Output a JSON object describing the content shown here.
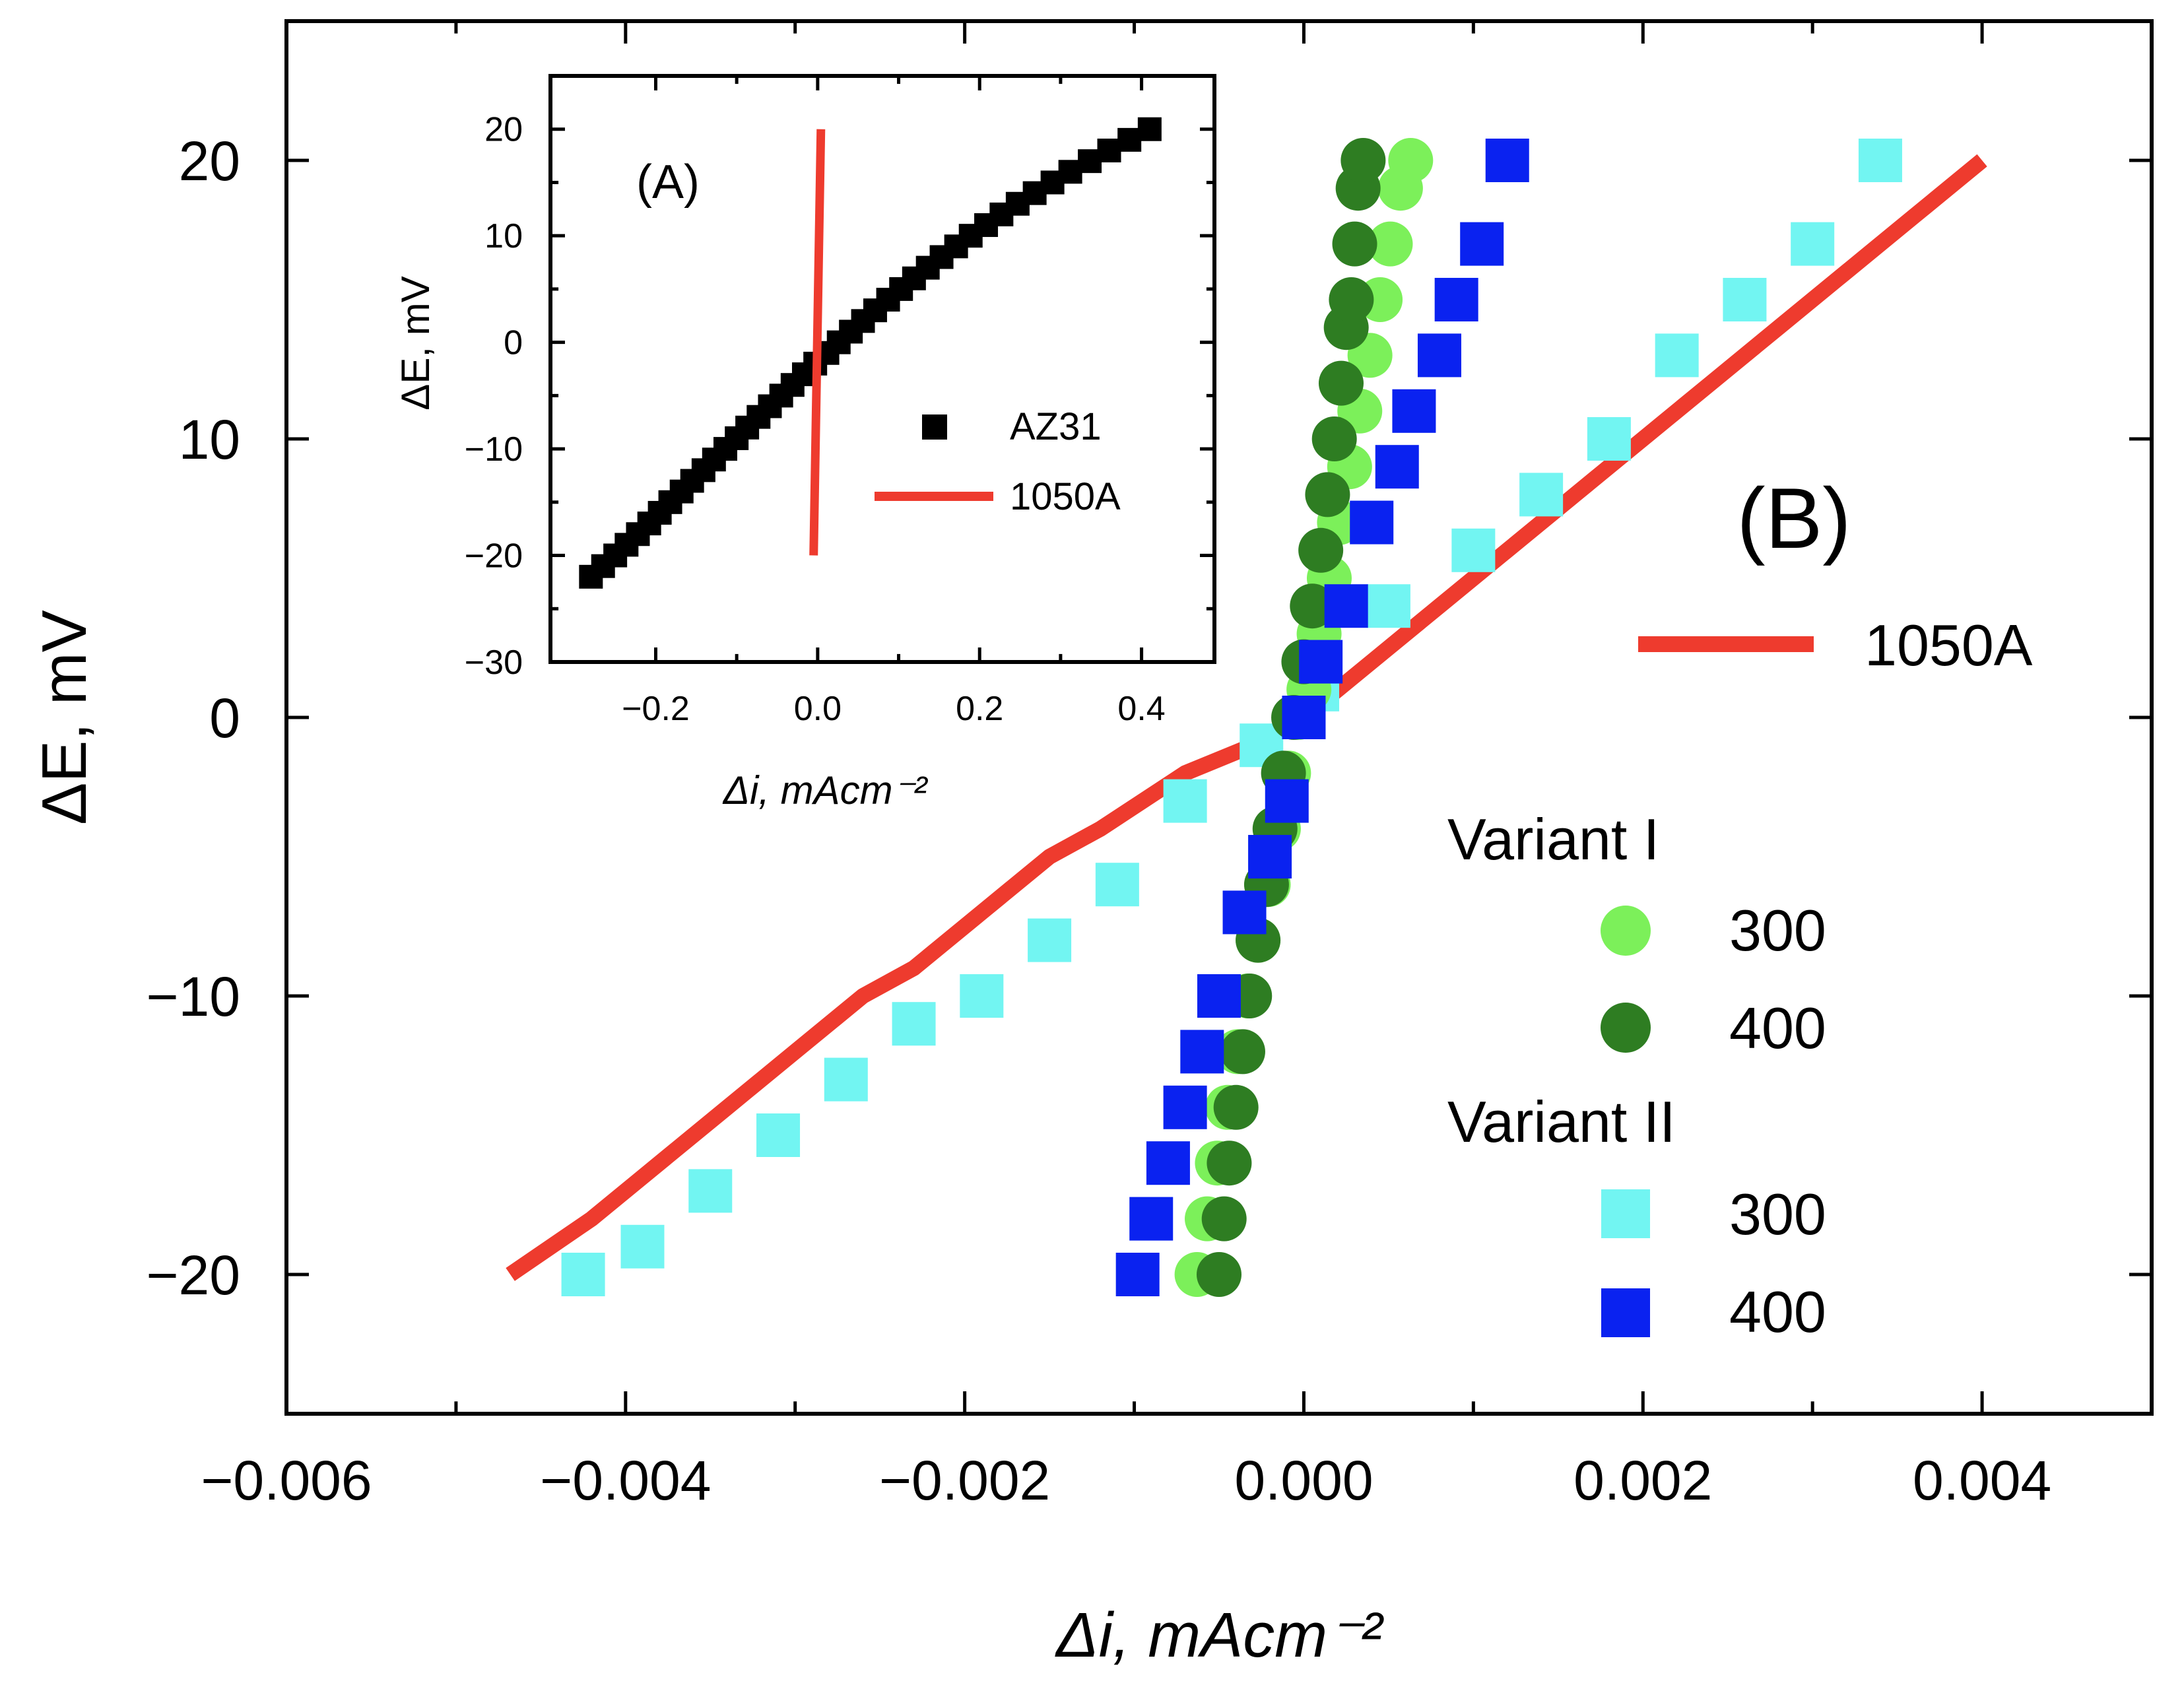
{
  "colors": {
    "line_1050A": "#EE3B2E",
    "v1_300": "#7CF05A",
    "v1_400": "#2E7D22",
    "v2_300": "#72F5F2",
    "v2_400": "#0A22F0",
    "az31": "#000000"
  },
  "chart_data": [
    {
      "id": "main",
      "type": "scatter",
      "panel_label": "(B)",
      "xlabel": "Δi, mAcm⁻²",
      "ylabel": "ΔE, mV",
      "xlim": [
        -0.006,
        0.005
      ],
      "ylim": [
        -25,
        25
      ],
      "x_ticks": [
        -0.006,
        -0.004,
        -0.002,
        0.0,
        0.002,
        0.004
      ],
      "x_tick_labels": [
        "−0.006",
        "−0.004",
        "−0.002",
        "0.000",
        "0.002",
        "0.004"
      ],
      "y_ticks": [
        -20,
        -10,
        0,
        10,
        20
      ],
      "y_tick_labels": [
        "−20",
        "−10",
        "0",
        "10",
        "20"
      ],
      "legend": {
        "line_entry": "1050A",
        "group_1": "Variant I",
        "group_2": "Variant II",
        "entries": [
          {
            "series": "v1_300",
            "label": "300"
          },
          {
            "series": "v1_400",
            "label": "400"
          },
          {
            "series": "v2_300",
            "label": "300"
          },
          {
            "series": "v2_400",
            "label": "400"
          }
        ]
      },
      "series": [
        {
          "id": "a1050",
          "name": "1050A",
          "marker": "line",
          "x": [
            -0.00468,
            -0.0042,
            -0.0038,
            -0.0034,
            -0.003,
            -0.0026,
            -0.0023,
            -0.0019,
            -0.0015,
            -0.0012,
            -0.0007,
            -0.0003,
            0.0,
            0.0004,
            0.0008,
            0.0012,
            0.0016,
            0.002,
            0.0024,
            0.0028,
            0.0032,
            0.0036,
            0.004
          ],
          "y": [
            -20,
            -18,
            -16,
            -14,
            -12,
            -10,
            -9,
            -7,
            -5,
            -4,
            -2,
            -1,
            0,
            2,
            4,
            6,
            8,
            10,
            12,
            14,
            16,
            18,
            20
          ]
        },
        {
          "id": "v1_300",
          "name": "300",
          "marker": "circle",
          "x": [
            -0.00063,
            -0.00057,
            -0.00051,
            -0.00045,
            -0.00039,
            -0.00033,
            -0.00027,
            -0.00021,
            -0.00015,
            -9e-05,
            -3e-05,
            3e-05,
            9e-05,
            0.00015,
            0.00021,
            0.00027,
            0.00033,
            0.00039,
            0.00045,
            0.00051,
            0.00057,
            0.00063
          ],
          "y": [
            -20,
            -18,
            -16,
            -14,
            -12,
            -10,
            -8,
            -6,
            -4,
            -2,
            0,
            1,
            3,
            5,
            7,
            9,
            11,
            13,
            15,
            17,
            19,
            20
          ]
        },
        {
          "id": "v1_400",
          "name": "400",
          "marker": "circle",
          "x": [
            -0.0005,
            -0.00047,
            -0.00044,
            -0.0004,
            -0.00036,
            -0.00032,
            -0.00027,
            -0.00022,
            -0.00017,
            -0.00012,
            -6e-05,
            0.0,
            5e-05,
            0.0001,
            0.00014,
            0.00018,
            0.00022,
            0.00025,
            0.00028,
            0.0003,
            0.00032,
            0.00035
          ],
          "y": [
            -20,
            -18,
            -16,
            -14,
            -12,
            -10,
            -8,
            -6,
            -4,
            -2,
            0,
            2,
            4,
            6,
            8,
            10,
            12,
            14,
            15,
            17,
            19,
            20
          ]
        },
        {
          "id": "v2_300",
          "name": "300",
          "marker": "square",
          "x": [
            -0.00425,
            -0.0039,
            -0.0035,
            -0.0031,
            -0.0027,
            -0.0023,
            -0.0019,
            -0.0015,
            -0.0011,
            -0.0007,
            -0.00025,
            8e-05,
            0.0005,
            0.001,
            0.0014,
            0.0018,
            0.0022,
            0.0026,
            0.003,
            0.0034
          ],
          "y": [
            -20,
            -19,
            -17,
            -15,
            -13,
            -11,
            -10,
            -8,
            -6,
            -3,
            -1,
            1,
            4,
            6,
            8,
            10,
            13,
            15,
            17,
            20
          ]
        },
        {
          "id": "v2_400",
          "name": "400",
          "marker": "square",
          "x": [
            -0.00098,
            -0.0009,
            -0.0008,
            -0.0007,
            -0.0006,
            -0.0005,
            -0.00035,
            -0.0002,
            -0.0001,
            0.0,
            0.0001,
            0.00025,
            0.0004,
            0.00055,
            0.00065,
            0.0008,
            0.0009,
            0.00105,
            0.0012
          ],
          "y": [
            -20,
            -18,
            -16,
            -14,
            -12,
            -10,
            -7,
            -5,
            -3,
            0,
            2,
            4,
            7,
            9,
            11,
            13,
            15,
            17,
            20
          ]
        }
      ]
    },
    {
      "id": "inset",
      "type": "scatter",
      "panel_label": "(A)",
      "xlabel": "Δi, mAcm⁻²",
      "ylabel": "ΔE, mV",
      "xlim": [
        -0.33,
        0.49
      ],
      "ylim": [
        -30,
        25
      ],
      "x_ticks": [
        -0.2,
        0.0,
        0.2,
        0.4
      ],
      "x_tick_labels": [
        "−0.2",
        "0.0",
        "0.2",
        "0.4"
      ],
      "y_ticks": [
        -30,
        -20,
        -10,
        0,
        10,
        20
      ],
      "y_tick_labels": [
        "−30",
        "−20",
        "−10",
        "0",
        "10",
        "20"
      ],
      "legend": {
        "entries": [
          {
            "series": "az31",
            "label": "AZ31"
          },
          {
            "series": "a1050_inset",
            "label": "1050A"
          }
        ]
      },
      "series": [
        {
          "id": "az31",
          "name": "AZ31",
          "marker": "square",
          "x": [
            -0.28,
            -0.265,
            -0.25,
            -0.236,
            -0.222,
            -0.208,
            -0.195,
            -0.182,
            -0.168,
            -0.155,
            -0.141,
            -0.128,
            -0.114,
            -0.1,
            -0.087,
            -0.073,
            -0.059,
            -0.045,
            -0.031,
            -0.017,
            -0.003,
            0.012,
            0.026,
            0.041,
            0.056,
            0.071,
            0.087,
            0.103,
            0.119,
            0.136,
            0.153,
            0.171,
            0.189,
            0.208,
            0.227,
            0.247,
            0.268,
            0.29,
            0.312,
            0.336,
            0.36,
            0.385,
            0.41
          ],
          "y": [
            -22,
            -21,
            -20,
            -19,
            -18,
            -17,
            -16,
            -15,
            -14,
            -13,
            -12,
            -11,
            -10,
            -9,
            -8,
            -7,
            -6,
            -5,
            -4,
            -3,
            -2,
            -1,
            0,
            1,
            2,
            3,
            4,
            5,
            6,
            7,
            8,
            9,
            10,
            11,
            12,
            13,
            14,
            15,
            16,
            17,
            18,
            19,
            20
          ]
        },
        {
          "id": "a1050_inset",
          "name": "1050A",
          "marker": "line",
          "x": [
            -0.005,
            0.004
          ],
          "y": [
            -20,
            20
          ]
        }
      ]
    }
  ]
}
